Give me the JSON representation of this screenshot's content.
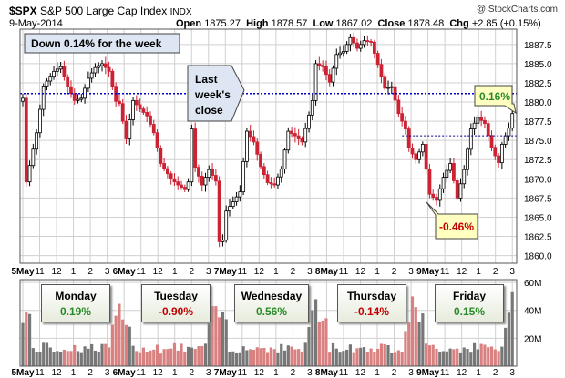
{
  "header": {
    "symbol": "$SPX",
    "name": "S&P 500 Large Cap Index",
    "exchange": "INDX",
    "date": "9-May-2014",
    "watermark": "@ StockCharts.com",
    "open_label": "Open",
    "open": "1875.27",
    "high_label": "High",
    "high": "1878.57",
    "low_label": "Low",
    "low": "1867.02",
    "close_label": "Close",
    "close": "1878.48",
    "chg_label": "Chg",
    "chg": "+2.85 (+0.15%)"
  },
  "annotations": {
    "week_box": "Down 0.14% for the week",
    "last_close_lines": [
      "Last",
      "week's",
      "close"
    ],
    "callout_up": "0.16%",
    "callout_down": "-0.46%"
  },
  "days": [
    {
      "name": "Monday",
      "change": "0.19%",
      "sign": "pos"
    },
    {
      "name": "Tuesday",
      "change": "-0.90%",
      "sign": "neg"
    },
    {
      "name": "Wednesday",
      "change": "0.56%",
      "sign": "pos"
    },
    {
      "name": "Thursday",
      "change": "-0.14%",
      "sign": "neg"
    },
    {
      "name": "Friday",
      "change": "0.15%",
      "sign": "pos"
    }
  ],
  "colors": {
    "up": "#000000",
    "down": "#cc2233",
    "blue_line": "#0000cc",
    "grid": "#d0d0d0",
    "vol_up": "#777777",
    "vol_down": "#d98080",
    "callout_fill": "#ffffc0",
    "last_box_fill": "#dde6f2"
  },
  "chart_data": {
    "type": "candlestick",
    "x_tick_labels": [
      "5May",
      "11",
      "12",
      "1",
      "2",
      "3",
      "6May",
      "11",
      "12",
      "1",
      "2",
      "3",
      "7May",
      "11",
      "12",
      "1",
      "2",
      "3",
      "8May",
      "11",
      "12",
      "1",
      "2",
      "3",
      "9May",
      "11",
      "12",
      "1",
      "2",
      "3"
    ],
    "y_ticks": [
      "1860.0",
      "1862.5",
      "1865.0",
      "1867.5",
      "1870.0",
      "1872.5",
      "1875.0",
      "1877.5",
      "1880.0",
      "1882.5",
      "1885.0",
      "1887.5"
    ],
    "ylim": [
      1859,
      1889.5
    ],
    "vol_ticks": [
      "20M",
      "40M",
      "60M"
    ],
    "vol_lim": [
      0,
      62
    ],
    "last_week_close": 1881.1,
    "friday_prev_close": 1875.6,
    "price_path": [
      [
        0,
        1880.5
      ],
      [
        1,
        1869.6
      ],
      [
        4,
        1876.0
      ],
      [
        6,
        1882.1
      ],
      [
        9,
        1884.0
      ],
      [
        11,
        1884.6
      ],
      [
        13,
        1882.0
      ],
      [
        15,
        1880.2
      ],
      [
        17,
        1880.5
      ],
      [
        19,
        1883.1
      ],
      [
        21,
        1884.5
      ],
      [
        23,
        1885.0
      ],
      [
        25,
        1884.0
      ],
      [
        27,
        1880.1
      ],
      [
        28,
        1879.8
      ],
      [
        30,
        1875.2
      ],
      [
        32,
        1880.2
      ],
      [
        34,
        1879.1
      ],
      [
        36,
        1878.2
      ],
      [
        38,
        1876.0
      ],
      [
        40,
        1872.0
      ],
      [
        43,
        1870.0
      ],
      [
        45,
        1869.2
      ],
      [
        47,
        1868.6
      ],
      [
        48,
        1869.6
      ],
      [
        49,
        1876.5
      ],
      [
        50,
        1871.5
      ],
      [
        52,
        1869.2
      ],
      [
        54,
        1871.2
      ],
      [
        56,
        1869.7
      ],
      [
        57,
        1861.8
      ],
      [
        58,
        1862.0
      ],
      [
        59,
        1865.8
      ],
      [
        61,
        1867.0
      ],
      [
        63,
        1868.3
      ],
      [
        65,
        1876.2
      ],
      [
        67,
        1874.8
      ],
      [
        69,
        1871.6
      ],
      [
        71,
        1869.5
      ],
      [
        73,
        1869.2
      ],
      [
        75,
        1871.3
      ],
      [
        77,
        1876.2
      ],
      [
        79,
        1875.6
      ],
      [
        81,
        1874.8
      ],
      [
        83,
        1878.3
      ],
      [
        84,
        1880.2
      ],
      [
        85,
        1885.0
      ],
      [
        87,
        1884.6
      ],
      [
        89,
        1882.6
      ],
      [
        91,
        1886.2
      ],
      [
        93,
        1886.6
      ],
      [
        95,
        1888.4
      ],
      [
        97,
        1887.0
      ],
      [
        99,
        1888.0
      ],
      [
        101,
        1887.8
      ],
      [
        103,
        1884.9
      ],
      [
        105,
        1881.8
      ],
      [
        107,
        1882.0
      ],
      [
        109,
        1878.5
      ],
      [
        111,
        1876.5
      ],
      [
        112,
        1874.0
      ],
      [
        114,
        1872.5
      ],
      [
        116,
        1874.5
      ],
      [
        118,
        1868.0
      ],
      [
        120,
        1867.2
      ],
      [
        122,
        1870.2
      ],
      [
        124,
        1872.0
      ],
      [
        126,
        1867.5
      ],
      [
        128,
        1871.2
      ],
      [
        130,
        1876.5
      ],
      [
        132,
        1878.0
      ],
      [
        134,
        1877.2
      ],
      [
        136,
        1874.1
      ],
      [
        137,
        1873.0
      ],
      [
        138,
        1872.1
      ],
      [
        139,
        1874.5
      ],
      [
        140,
        1875.6
      ],
      [
        141,
        1876.6
      ],
      [
        142,
        1878.5
      ]
    ]
  }
}
